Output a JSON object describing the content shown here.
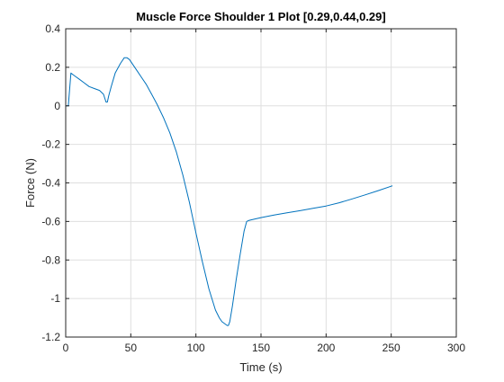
{
  "chart_data": {
    "type": "line",
    "title": "Muscle Force Shoulder 1 Plot [0.29,0.44,0.29]",
    "xlabel": "Time (s)",
    "ylabel": "Force (N)",
    "xlim": [
      0,
      300
    ],
    "ylim": [
      -1.2,
      0.4
    ],
    "grid": true,
    "xticks": [
      0,
      50,
      100,
      150,
      200,
      250,
      300
    ],
    "xtick_labels": [
      "0",
      "50",
      "100",
      "150",
      "200",
      "250",
      "300"
    ],
    "yticks": [
      -1.2,
      -1,
      -0.8,
      -0.6,
      -0.4,
      -0.2,
      0,
      0.2,
      0.4
    ],
    "ytick_labels": [
      "-1.2",
      "-1",
      "-0.8",
      "-0.6",
      "-0.4",
      "-0.2",
      "0",
      "0.2",
      "0.4"
    ],
    "line_color": "#0072BD",
    "series": [
      {
        "x": [
          0,
          2,
          4,
          6,
          8,
          10,
          14,
          18,
          22,
          26,
          29,
          31,
          32,
          33,
          35,
          38,
          42,
          45,
          47,
          49,
          52,
          55,
          58,
          62,
          66,
          70,
          75,
          80,
          85,
          90,
          95,
          100,
          105,
          110,
          115,
          118,
          120,
          122,
          124,
          125,
          126,
          128,
          131,
          134,
          137,
          139,
          140,
          141,
          145,
          150,
          160,
          170,
          180,
          190,
          200,
          210,
          220,
          230,
          240,
          251
        ],
        "y": [
          0.0,
          0.0,
          0.17,
          0.16,
          0.15,
          0.14,
          0.12,
          0.1,
          0.09,
          0.08,
          0.06,
          0.02,
          0.02,
          0.05,
          0.1,
          0.17,
          0.22,
          0.25,
          0.25,
          0.24,
          0.21,
          0.18,
          0.15,
          0.11,
          0.06,
          0.01,
          -0.06,
          -0.14,
          -0.24,
          -0.36,
          -0.5,
          -0.66,
          -0.81,
          -0.95,
          -1.06,
          -1.1,
          -1.12,
          -1.13,
          -1.14,
          -1.14,
          -1.12,
          -1.04,
          -0.9,
          -0.77,
          -0.65,
          -0.6,
          -0.597,
          -0.594,
          -0.588,
          -0.58,
          -0.567,
          -0.555,
          -0.544,
          -0.532,
          -0.52,
          -0.503,
          -0.483,
          -0.462,
          -0.44,
          -0.415
        ]
      }
    ]
  }
}
